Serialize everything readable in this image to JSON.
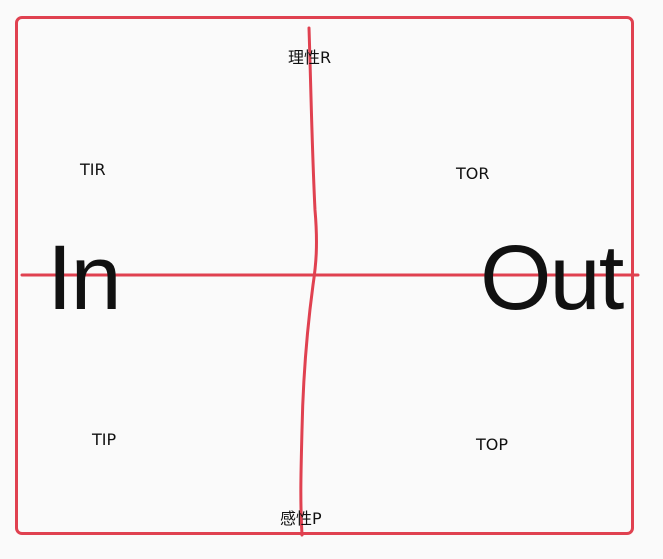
{
  "colors": {
    "frame": "#e04150",
    "axis": "#e04150",
    "text": "#111111",
    "background": "#fafafa"
  },
  "axis_labels": {
    "top": "理性R",
    "bottom": "感性P",
    "left": "In",
    "right": "Out"
  },
  "quadrants": {
    "top_left": "TIR",
    "top_right": "TOR",
    "bottom_left": "TIP",
    "bottom_right": "TOP"
  }
}
